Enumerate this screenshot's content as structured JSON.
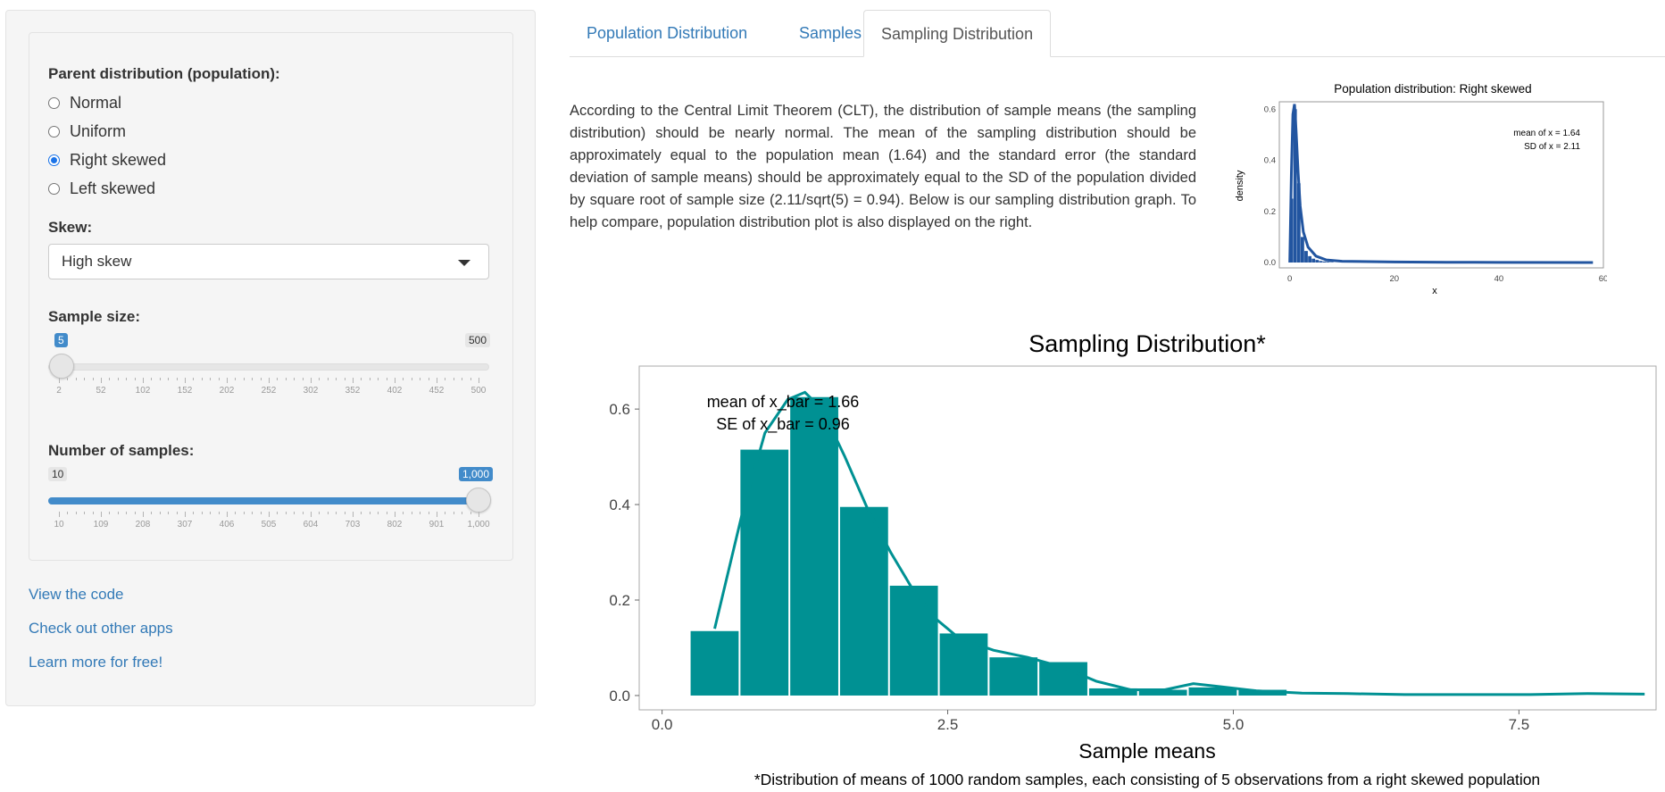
{
  "sidebar": {
    "parent_label": "Parent distribution (population):",
    "options": [
      "Normal",
      "Uniform",
      "Right skewed",
      "Left skewed"
    ],
    "selected_option": "Right skewed",
    "skew_label": "Skew:",
    "skew_value": "High skew",
    "sample_size": {
      "label": "Sample size:",
      "min": 2,
      "max": 500,
      "value": 5,
      "min_tag": "5",
      "max_tag": "500",
      "tick_labels": [
        "2",
        "52",
        "102",
        "152",
        "202",
        "252",
        "302",
        "352",
        "402",
        "452",
        "500"
      ]
    },
    "num_samples": {
      "label": "Number of samples:",
      "min": 10,
      "max": 1000,
      "value": 1000,
      "min_tag": "10",
      "max_tag": "1,000",
      "tick_labels": [
        "10",
        "109",
        "208",
        "307",
        "406",
        "505",
        "604",
        "703",
        "802",
        "901",
        "1,000"
      ]
    },
    "links": [
      "View the code",
      "Check out other apps",
      "Learn more for free!"
    ]
  },
  "tabs": [
    "Population Distribution",
    "Samples",
    "Sampling Distribution"
  ],
  "active_tab": "Sampling Distribution",
  "description": "According to the Central Limit Theorem (CLT), the distribution of sample means (the sampling distribution) should be nearly normal. The mean of the sampling distribution should be approximately equal to the population mean (1.64) and the standard error (the standard deviation of sample means) should be approximately equal to the SD of the population divided by square root of sample size (2.11/sqrt(5) = 0.94). Below is our sampling distribution graph. To help compare, population distribution plot is also displayed on the right.",
  "colors": {
    "link": "#337ab7",
    "slider": "#428bca",
    "teal": "#009193",
    "pop": "#2255a0"
  },
  "chart_data": [
    {
      "type": "bar",
      "title": "Population distribution: Right skewed",
      "xlabel": "x",
      "ylabel": "density",
      "xlim": [
        -2,
        60
      ],
      "ylim": [
        0,
        0.65
      ],
      "xticks": [
        "0",
        "20",
        "40",
        "60"
      ],
      "yticks": [
        "0.0",
        "0.2",
        "0.4",
        "0.6"
      ],
      "annotation": [
        "mean of x = 1.64",
        "SD of x = 2.11"
      ],
      "bins_x": [
        0,
        0.7,
        1.4,
        2.1,
        2.8,
        3.5,
        4.2,
        4.9,
        5.6,
        6.3,
        7.0,
        7.7
      ],
      "bins_y": [
        0.25,
        0.6,
        0.31,
        0.1,
        0.045,
        0.025,
        0.015,
        0.01,
        0.006,
        0.004,
        0.003,
        0.002
      ],
      "bin_width": 0.7,
      "curve": [
        [
          0,
          0.0
        ],
        [
          0.3,
          0.35
        ],
        [
          0.6,
          0.58
        ],
        [
          0.9,
          0.62
        ],
        [
          1.2,
          0.52
        ],
        [
          1.6,
          0.35
        ],
        [
          2,
          0.22
        ],
        [
          2.6,
          0.12
        ],
        [
          3.5,
          0.06
        ],
        [
          5,
          0.025
        ],
        [
          7,
          0.01
        ],
        [
          10,
          0.005
        ],
        [
          20,
          0.002
        ],
        [
          30,
          0.001
        ],
        [
          40,
          0.0005
        ],
        [
          58,
          0.0
        ]
      ]
    },
    {
      "type": "bar",
      "title": "Sampling Distribution*",
      "xlabel": "Sample means",
      "ylabel": "",
      "xlim": [
        -0.2,
        8.7
      ],
      "ylim": [
        -0.03,
        0.69
      ],
      "xticks": [
        0,
        2.5,
        5.0,
        7.5
      ],
      "xtick_labels": [
        "0.0",
        "2.5",
        "5.0",
        "7.5"
      ],
      "yticks": [
        0,
        0.2,
        0.4,
        0.6
      ],
      "ytick_labels": [
        "0.0",
        "0.2",
        "0.4",
        "0.6"
      ],
      "annotation": [
        "mean of x_bar = 1.66",
        "SE of x_bar = 0.96"
      ],
      "bin_width": 0.436,
      "bins_x": [
        0.46,
        0.896,
        1.332,
        1.768,
        2.204,
        2.64,
        3.076,
        3.512,
        3.948,
        4.384,
        4.82,
        5.256
      ],
      "bins_y": [
        0.135,
        0.515,
        0.625,
        0.395,
        0.23,
        0.13,
        0.08,
        0.07,
        0.015,
        0.012,
        0.017,
        0.012
      ],
      "curve": [
        [
          0.46,
          0.14
        ],
        [
          0.7,
          0.38
        ],
        [
          0.9,
          0.55
        ],
        [
          1.1,
          0.62
        ],
        [
          1.25,
          0.635
        ],
        [
          1.4,
          0.6
        ],
        [
          1.6,
          0.5
        ],
        [
          1.8,
          0.39
        ],
        [
          2.0,
          0.3
        ],
        [
          2.2,
          0.22
        ],
        [
          2.4,
          0.16
        ],
        [
          2.6,
          0.12
        ],
        [
          2.9,
          0.095
        ],
        [
          3.2,
          0.08
        ],
        [
          3.5,
          0.06
        ],
        [
          3.8,
          0.03
        ],
        [
          4.1,
          0.012
        ],
        [
          4.4,
          0.012
        ],
        [
          4.65,
          0.025
        ],
        [
          4.9,
          0.018
        ],
        [
          5.2,
          0.01
        ],
        [
          5.6,
          0.005
        ],
        [
          6.0,
          0.004
        ],
        [
          6.5,
          0.002
        ],
        [
          7.0,
          0.002
        ],
        [
          7.6,
          0.002
        ],
        [
          8.1,
          0.004
        ],
        [
          8.6,
          0.003
        ]
      ]
    }
  ],
  "footnote": "*Distribution of means of 1000 random samples, each consisting of 5 observations from a right skewed population"
}
